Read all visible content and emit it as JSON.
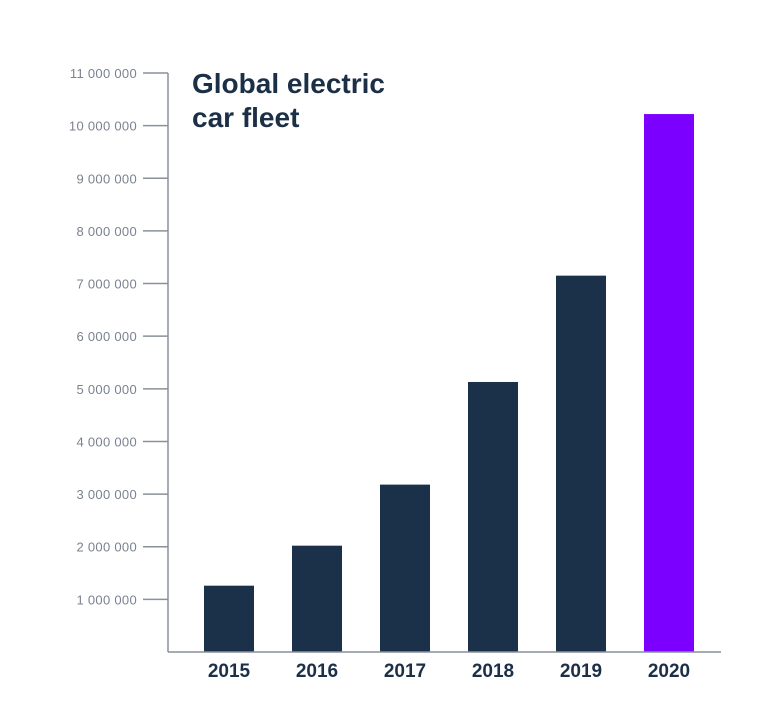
{
  "chart_data": {
    "type": "bar",
    "title_lines": [
      "Global electric",
      "car fleet"
    ],
    "categories": [
      "2015",
      "2016",
      "2017",
      "2018",
      "2019",
      "2020"
    ],
    "values": [
      1260000,
      2020000,
      3180000,
      5130000,
      7150000,
      10220000
    ],
    "ylim": [
      0,
      11000000
    ],
    "y_ticks": [
      {
        "value": 1000000,
        "label": "1 000 000"
      },
      {
        "value": 2000000,
        "label": "2 000 000"
      },
      {
        "value": 3000000,
        "label": "3 000 000"
      },
      {
        "value": 4000000,
        "label": "4 000 000"
      },
      {
        "value": 5000000,
        "label": "5 000 000"
      },
      {
        "value": 6000000,
        "label": "6 000 000"
      },
      {
        "value": 7000000,
        "label": "7 000 000"
      },
      {
        "value": 8000000,
        "label": "8 000 000"
      },
      {
        "value": 9000000,
        "label": "9 000 000"
      },
      {
        "value": 10000000,
        "label": "10 000 000"
      },
      {
        "value": 11000000,
        "label": "11 000 000"
      }
    ],
    "grid": false,
    "legend": "none",
    "colors": {
      "bar": "#1b3149",
      "highlight": "#7b00ff",
      "axis": "#8a909c",
      "title": "#1b2f47"
    },
    "highlight_category": "2020"
  }
}
